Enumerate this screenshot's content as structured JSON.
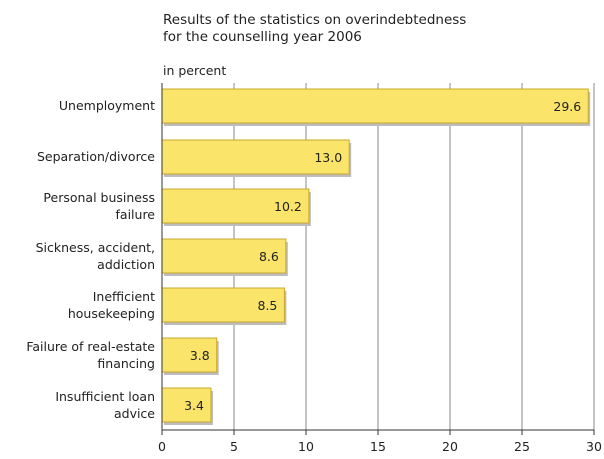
{
  "chart_data": {
    "type": "bar",
    "orientation": "horizontal",
    "title_lines": [
      "Results of the statistics on overindebtedness",
      "for the counselling year 2006"
    ],
    "unit_label": "in percent",
    "categories": [
      [
        "Unemployment"
      ],
      [
        "Separation/divorce"
      ],
      [
        "Personal business",
        "failure"
      ],
      [
        "Sickness, accident,",
        "addiction"
      ],
      [
        "Inefficient",
        "housekeeping"
      ],
      [
        "Failure of real-estate",
        "financing"
      ],
      [
        "Insufficient loan",
        "advice"
      ]
    ],
    "values": [
      29.6,
      13.0,
      10.2,
      8.6,
      8.5,
      3.8,
      3.4
    ],
    "value_labels": [
      "29.6",
      "13.0",
      "10.2",
      "8.6",
      "8.5",
      "3.8",
      "3.4"
    ],
    "x_ticks": [
      "0",
      "5",
      "10",
      "15",
      "20",
      "25",
      "30"
    ],
    "xlim": [
      0,
      30
    ],
    "grid": true,
    "colors": {
      "bar_fill": "#fae46a",
      "bar_stroke": "#c9a82c",
      "bar_shadow": "#bdbdbd",
      "grid": "#8a8a8a",
      "axis": "#333333"
    }
  }
}
